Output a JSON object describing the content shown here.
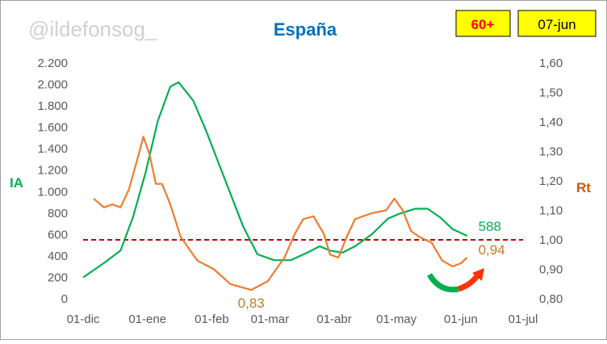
{
  "chart_data": {
    "type": "line",
    "watermark": "@ildefonsog_",
    "title": "España",
    "badges": [
      "60+",
      "07-jun"
    ],
    "ylabel": "IA",
    "y2label": "Rt",
    "xlim": [
      0,
      212
    ],
    "xticks": [
      {
        "value": 0,
        "label": "01-dic"
      },
      {
        "value": 31,
        "label": "01-ene"
      },
      {
        "value": 62,
        "label": "01-feb"
      },
      {
        "value": 90,
        "label": "01-mar"
      },
      {
        "value": 121,
        "label": "01-abr"
      },
      {
        "value": 151,
        "label": "01-may"
      },
      {
        "value": 182,
        "label": "01-jun"
      },
      {
        "value": 212,
        "label": "01-jul"
      }
    ],
    "ylim": [
      0,
      2200
    ],
    "yticks": [
      0,
      {
        "value": 200,
        "label": "200"
      },
      {
        "value": 400,
        "label": "400"
      },
      {
        "value": 600,
        "label": "600"
      },
      {
        "value": 800,
        "label": "800"
      },
      {
        "value": 1000,
        "label": "1.000"
      },
      {
        "value": 1200,
        "label": "1.200"
      },
      {
        "value": 1400,
        "label": "1.400"
      },
      {
        "value": 1600,
        "label": "1.600"
      },
      {
        "value": 1800,
        "label": "1.800"
      },
      {
        "value": 2000,
        "label": "2.000"
      },
      {
        "value": 2200,
        "label": "2.200"
      }
    ],
    "y2lim": [
      0.8,
      1.6
    ],
    "y2ticks": [
      {
        "value": 0.8,
        "label": "0,80"
      },
      {
        "value": 0.9,
        "label": "0,90"
      },
      {
        "value": 1.0,
        "label": "1,00"
      },
      {
        "value": 1.1,
        "label": "1,10"
      },
      {
        "value": 1.2,
        "label": "1,20"
      },
      {
        "value": 1.3,
        "label": "1,30"
      },
      {
        "value": 1.4,
        "label": "1,40"
      },
      {
        "value": 1.5,
        "label": "1,50"
      },
      {
        "value": 1.6,
        "label": "1,60"
      }
    ],
    "reference_line": {
      "value": 1.0,
      "axis": "y2",
      "color": "#c00000"
    },
    "series": [
      {
        "color": "#00b050",
        "x": [
          0,
          10.5,
          18,
          24,
          30,
          36,
          42,
          46,
          53,
          59,
          65,
          71,
          77,
          84,
          92,
          100,
          108,
          114,
          119,
          125,
          131,
          139,
          147,
          152,
          160,
          166,
          172,
          178,
          185
        ],
        "values": [
          200,
          340,
          450,
          760,
          1170,
          1660,
          1980,
          2020,
          1850,
          1580,
          1280,
          980,
          680,
          415,
          360,
          360,
          430,
          490,
          450,
          430,
          490,
          600,
          750,
          790,
          840,
          840,
          760,
          650,
          588
        ]
      },
      {
        "color": "#ed7d31",
        "axis": "y2",
        "x": [
          5,
          10,
          14,
          18,
          22,
          26,
          29,
          32,
          35,
          38,
          42,
          47,
          55,
          63,
          71,
          81,
          89,
          97,
          102,
          106,
          111,
          116,
          119,
          123,
          127,
          131,
          139,
          146,
          150,
          154,
          158,
          162,
          168,
          173,
          178,
          182,
          185
        ],
        "values": [
          1.14,
          1.11,
          1.12,
          1.11,
          1.17,
          1.27,
          1.35,
          1.29,
          1.19,
          1.19,
          1.12,
          1.01,
          0.93,
          0.9,
          0.85,
          0.83,
          0.86,
          0.94,
          1.02,
          1.07,
          1.08,
          1.02,
          0.95,
          0.94,
          1.01,
          1.07,
          1.09,
          1.1,
          1.14,
          1.1,
          1.03,
          1.01,
          0.99,
          0.93,
          0.91,
          0.92,
          0.94
        ]
      }
    ],
    "annotations": [
      {
        "text": "588",
        "x": 185,
        "y": 588,
        "color": "#00b050"
      },
      {
        "text": "0,94",
        "x": 185,
        "y2": 0.94,
        "color": "#c07a2a"
      },
      {
        "text": "0,83",
        "x": 81,
        "y2": 0.83,
        "color": "#c07a2a"
      }
    ]
  }
}
